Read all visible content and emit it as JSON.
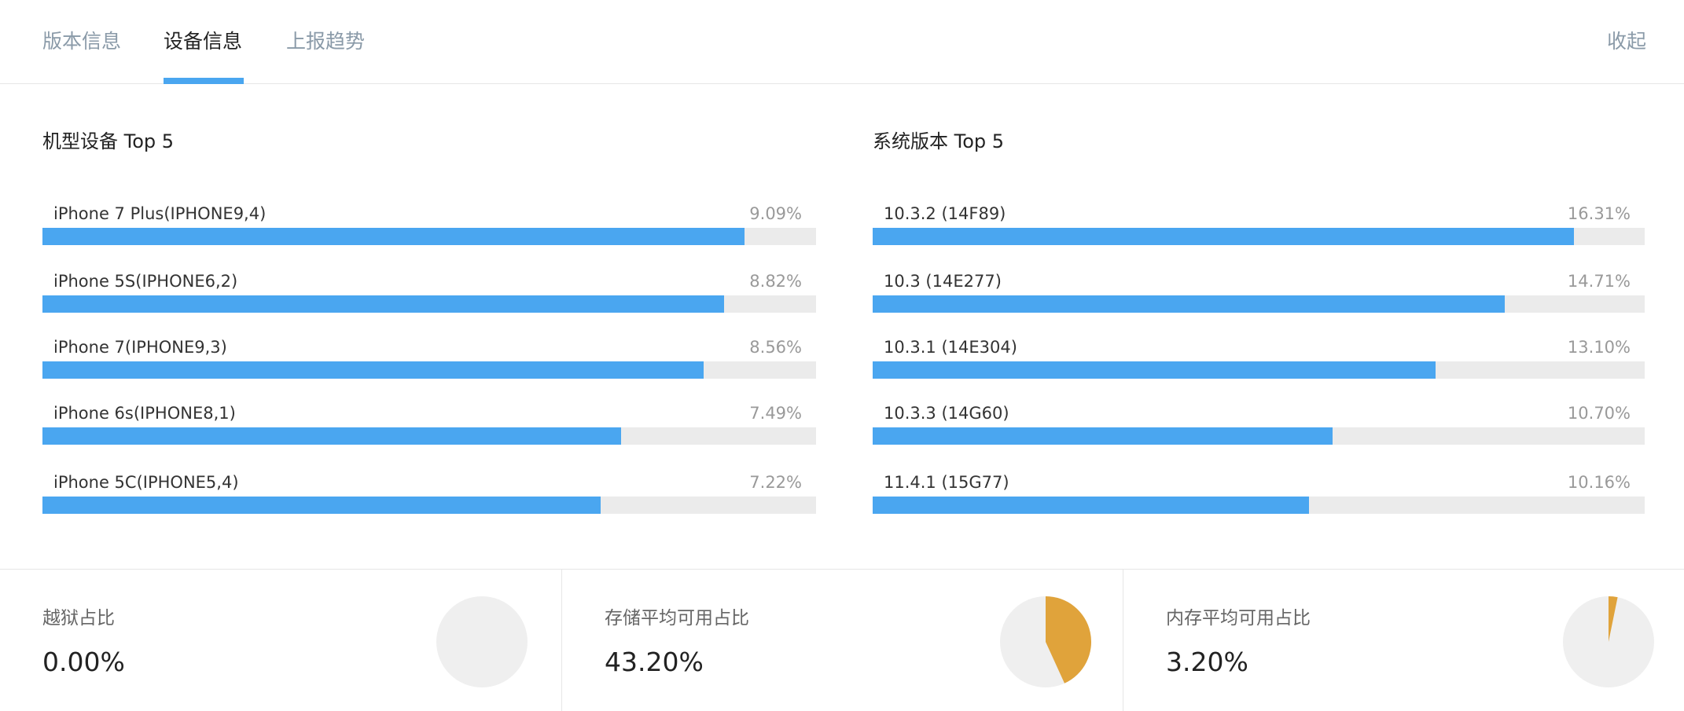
{
  "tabs": [
    {
      "label": "版本信息"
    },
    {
      "label": "设备信息"
    },
    {
      "label": "上报趋势"
    }
  ],
  "active_tab": 1,
  "collapse_label": "收起",
  "colors": {
    "accent": "#4aa6f0",
    "pie_fill": "#e0a33b",
    "pie_bg": "#efefef",
    "track": "#ebebeb"
  },
  "devices": {
    "title": "机型设备 Top 5",
    "items": [
      {
        "label": "iPhone 7 Plus(IPHONE9,4)",
        "pct": "9.09%",
        "value": 9.09
      },
      {
        "label": "iPhone 5S(IPHONE6,2)",
        "pct": "8.82%",
        "value": 8.82
      },
      {
        "label": "iPhone 7(IPHONE9,3)",
        "pct": "8.56%",
        "value": 8.56
      },
      {
        "label": "iPhone 6s(IPHONE8,1)",
        "pct": "7.49%",
        "value": 7.49
      },
      {
        "label": "iPhone 5C(IPHONE5,4)",
        "pct": "7.22%",
        "value": 7.22
      }
    ]
  },
  "os": {
    "title": "系统版本 Top 5",
    "items": [
      {
        "label": "10.3.2 (14F89)",
        "pct": "16.31%",
        "value": 16.31
      },
      {
        "label": "10.3 (14E277)",
        "pct": "14.71%",
        "value": 14.71
      },
      {
        "label": "10.3.1 (14E304)",
        "pct": "13.10%",
        "value": 13.1
      },
      {
        "label": "10.3.3 (14G60)",
        "pct": "10.70%",
        "value": 10.7
      },
      {
        "label": "11.4.1 (15G77)",
        "pct": "10.16%",
        "value": 10.16
      }
    ]
  },
  "stats": [
    {
      "label": "越狱占比",
      "value_text": "0.00%",
      "fraction": 0.0
    },
    {
      "label": "存储平均可用占比",
      "value_text": "43.20%",
      "fraction": 0.432
    },
    {
      "label": "内存平均可用占比",
      "value_text": "3.20%",
      "fraction": 0.032
    }
  ]
}
